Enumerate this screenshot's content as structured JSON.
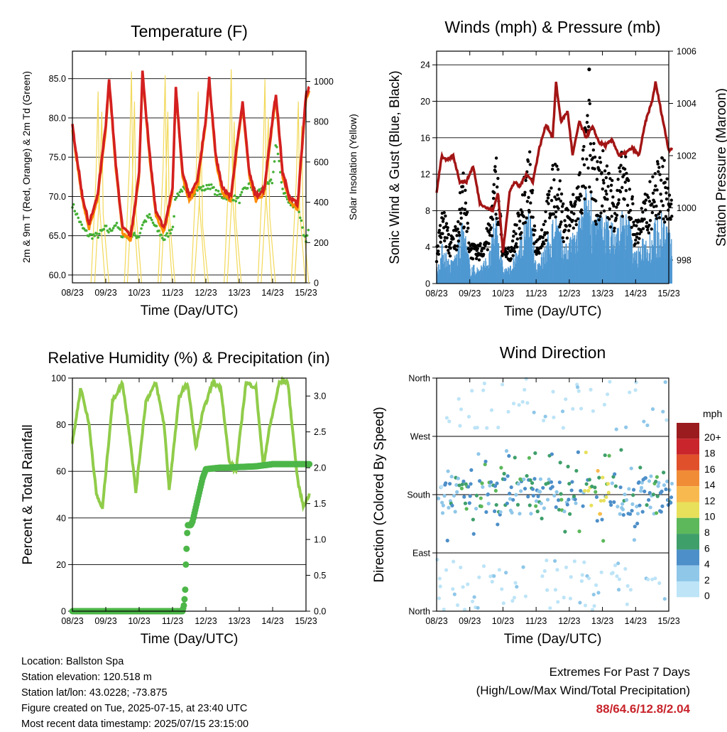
{
  "x_ticks": [
    "08/23",
    "09/23",
    "10/23",
    "11/23",
    "12/23",
    "13/23",
    "14/23",
    "15/23"
  ],
  "x_axis_label": "Time (Day/UTC)",
  "colors": {
    "temp_2m": "#d42020",
    "temp_9m": "#ff8c00",
    "dewpoint": "#45b035",
    "solar": "#f2d95b",
    "wind": "#4f98d2",
    "gust": "#000000",
    "pressure": "#a31515",
    "rh": "#90cc4a",
    "precip": "#4cb648",
    "extremes": "#c8242b"
  },
  "chart_data": [
    {
      "id": "temperature",
      "type": "line",
      "title": "Temperature (F)",
      "ylabel": "2m & 9m T (Red, Orange) & 2m Td (Green)",
      "ylabel_right": "Solar Insolation (Yellow)",
      "ylim": [
        59,
        88.5
      ],
      "yticks": [
        "60.0",
        "65.0",
        "70.0",
        "75.0",
        "80.0",
        "85.0"
      ],
      "ylim_right": [
        0,
        1150
      ],
      "yticks_right": [
        "0",
        "200",
        "400",
        "600",
        "800",
        "1000"
      ],
      "grid": true,
      "x_days": [
        0,
        0.3,
        0.5,
        0.75,
        1.0,
        1.1,
        1.3,
        1.5,
        1.75,
        2.0,
        2.1,
        2.3,
        2.5,
        2.75,
        3.0,
        3.1,
        3.3,
        3.5,
        3.75,
        4.0,
        4.1,
        4.3,
        4.5,
        4.75,
        5.0,
        5.1,
        5.3,
        5.5,
        5.75,
        6.0,
        6.1,
        6.3,
        6.5,
        6.75,
        7.0,
        7.1
      ],
      "series": [
        {
          "key": "t2m",
          "values": [
            79,
            70,
            66.5,
            70,
            79,
            85,
            74,
            66,
            65,
            73,
            86,
            76,
            68,
            66,
            71,
            84,
            73,
            70,
            72,
            80,
            85,
            75,
            71,
            70,
            79,
            82,
            73,
            70,
            71,
            80,
            83,
            73,
            70,
            69,
            83,
            84
          ]
        },
        {
          "key": "td2m",
          "values": [
            69,
            66,
            65,
            65,
            66,
            65.5,
            66.5,
            65,
            65,
            65,
            66.5,
            67.5,
            66,
            64.5,
            66,
            70,
            71,
            70,
            71,
            71,
            71.5,
            70.5,
            70,
            70,
            69.5,
            70.5,
            71.5,
            70.5,
            71,
            72,
            77,
            71,
            69,
            69,
            64,
            66
          ]
        }
      ],
      "solar_peaks": [
        {
          "day": 0.77,
          "v": 950
        },
        {
          "day": 0.88,
          "v": 850
        },
        {
          "day": 1.77,
          "v": 1050
        },
        {
          "day": 1.86,
          "v": 900
        },
        {
          "day": 2.78,
          "v": 1030
        },
        {
          "day": 2.86,
          "v": 850
        },
        {
          "day": 3.77,
          "v": 950
        },
        {
          "day": 3.86,
          "v": 700
        },
        {
          "day": 4.76,
          "v": 1060
        },
        {
          "day": 4.85,
          "v": 800
        },
        {
          "day": 5.77,
          "v": 1010
        },
        {
          "day": 5.87,
          "v": 820
        },
        {
          "day": 6.77,
          "v": 900
        },
        {
          "day": 6.87,
          "v": 780
        }
      ]
    },
    {
      "id": "winds",
      "type": "scatter",
      "title": "Winds (mph) & Pressure (mb)",
      "ylabel": "Sonic Wind & Gust (Blue, Black)",
      "ylabel_right": "Station Pressure (Maroon)",
      "ylim": [
        0,
        25.5
      ],
      "yticks": [
        "0",
        "4",
        "8",
        "12",
        "16",
        "20",
        "24"
      ],
      "ylim_right": [
        997.1,
        1006
      ],
      "yticks_right": [
        "998",
        "1000",
        "1002",
        "1004",
        "1006"
      ],
      "grid": true,
      "pressure_days": [
        0,
        0.15,
        0.3,
        0.5,
        0.7,
        0.9,
        1.1,
        1.3,
        1.5,
        1.7,
        1.85,
        2.0,
        2.2,
        2.35,
        2.5,
        2.7,
        2.9,
        3.1,
        3.3,
        3.5,
        3.6,
        3.75,
        3.95,
        4.1,
        4.3,
        4.5,
        4.7,
        4.9,
        5.1,
        5.3,
        5.5,
        5.7,
        5.9,
        6.1,
        6.3,
        6.5,
        6.6,
        6.8,
        7.0,
        7.1
      ],
      "pressure": [
        1000.6,
        1002.0,
        1001.8,
        1002.0,
        1001.0,
        1001.0,
        1001.6,
        1000.2,
        1000.0,
        999.9,
        1000.6,
        998.3,
        1000.6,
        1001.0,
        1000.8,
        1001.3,
        1001.0,
        1002.3,
        1003.2,
        1002.7,
        1004.8,
        1003.3,
        1003.7,
        1002.0,
        1003.3,
        1002.7,
        1003.1,
        1002.5,
        1002.4,
        1002.6,
        1002.0,
        1002.1,
        1002.3,
        1002.0,
        1003.3,
        1004.1,
        1004.8,
        1003.5,
        1002.2,
        1002.3
      ],
      "gust_max": 23.5,
      "wind_days": [
        0,
        0.2,
        0.4,
        0.6,
        0.8,
        1.0,
        1.2,
        1.4,
        1.6,
        1.8,
        2.0,
        2.2,
        2.4,
        2.6,
        2.8,
        3.0,
        3.2,
        3.4,
        3.6,
        3.8,
        4.0,
        4.2,
        4.4,
        4.6,
        4.8,
        5.0,
        5.2,
        5.4,
        5.6,
        5.8,
        6.0,
        6.2,
        6.4,
        6.6,
        6.8,
        7.0,
        7.1
      ],
      "wind": [
        1.5,
        4,
        2,
        3,
        6,
        2,
        1.5,
        2,
        3,
        7,
        1.5,
        1.5,
        3,
        5,
        7,
        2,
        3,
        5,
        7,
        4,
        4,
        5,
        7,
        10,
        6,
        7,
        6,
        5,
        7,
        6,
        3,
        4,
        5,
        6,
        7,
        5,
        4
      ]
    },
    {
      "id": "humidity",
      "type": "line",
      "title": "Relative Humidity (%) & Precipitation (in)",
      "ylabel": "Percent & Total Rainfall",
      "ylim": [
        0,
        100
      ],
      "yticks": [
        "0",
        "20",
        "40",
        "60",
        "80",
        "100"
      ],
      "ylim_right": [
        0,
        3.25
      ],
      "yticks_right": [
        "0.0",
        "0.5",
        "1.0",
        "1.5",
        "2.0",
        "2.5",
        "3.0"
      ],
      "grid": true,
      "rh_days": [
        0,
        0.25,
        0.5,
        0.72,
        0.9,
        1.2,
        1.5,
        1.72,
        1.9,
        2.2,
        2.5,
        2.75,
        2.9,
        3.2,
        3.45,
        3.7,
        3.9,
        4.2,
        4.45,
        4.7,
        4.9,
        5.2,
        5.5,
        5.72,
        5.9,
        6.2,
        6.45,
        6.75,
        6.92,
        7.1
      ],
      "rh": [
        72,
        96,
        80,
        50,
        44,
        90,
        98,
        75,
        51,
        90,
        98,
        80,
        52,
        92,
        98,
        70,
        85,
        98,
        96,
        64,
        60,
        98,
        96,
        62,
        78,
        98,
        99,
        56,
        45,
        50
      ],
      "precip_days": [
        0,
        3.3,
        3.35,
        3.38,
        3.4,
        3.45,
        3.55,
        3.6,
        3.9,
        4.0,
        4.4,
        4.6,
        5.0,
        5.5,
        6.0,
        6.5,
        7.1
      ],
      "precip": [
        0,
        0,
        0.1,
        0.3,
        0.65,
        1.2,
        1.2,
        1.25,
        1.85,
        1.98,
        2.0,
        2.0,
        2.01,
        2.02,
        2.05,
        2.05,
        2.05
      ]
    },
    {
      "id": "direction",
      "type": "scatter",
      "title": "Wind Direction",
      "ylabel": "Direction (Colored By Speed)",
      "ytick_labels": [
        "North",
        "East",
        "South",
        "West",
        "North"
      ],
      "legend_title": "mph",
      "legend_labels": [
        "0",
        "2",
        "4",
        "6",
        "8",
        "10",
        "12",
        "14",
        "16",
        "18",
        "20+"
      ],
      "speed_colors": [
        "#bde4f7",
        "#8fc7e9",
        "#4d8fc9",
        "#3f9f6a",
        "#5cb85a",
        "#e8e05a",
        "#f8ba4e",
        "#f08c36",
        "#e0512b",
        "#c9252c",
        "#9b1c1f"
      ],
      "grid": true,
      "south_dir": 180,
      "band_days": [
        0.2,
        0.4,
        1.0,
        1.2,
        1.8,
        2.2,
        2.8,
        3.2,
        3.8,
        4.2,
        4.6,
        5.0,
        5.4,
        6.0,
        6.6,
        7.0
      ],
      "band_speed": [
        3,
        5,
        8,
        6,
        9,
        5,
        8,
        5,
        7,
        6,
        10,
        11,
        6,
        5,
        7,
        6
      ]
    }
  ],
  "info": {
    "location": "Location: Ballston Spa",
    "elevation": "Station elevation: 120.518 m",
    "latlon": "Station lat/lon: 43.0228; -73.875",
    "created": "Figure created on Tue, 2025-07-15, at 23:40 UTC",
    "recent": "Most recent data timestamp: 2025/07/15 23:15:00"
  },
  "extremes": {
    "line1": "Extremes For Past 7 Days",
    "line2": "(High/Low/Max Wind/Total Precipitation)",
    "values": "88/64.6/12.8/2.04"
  }
}
